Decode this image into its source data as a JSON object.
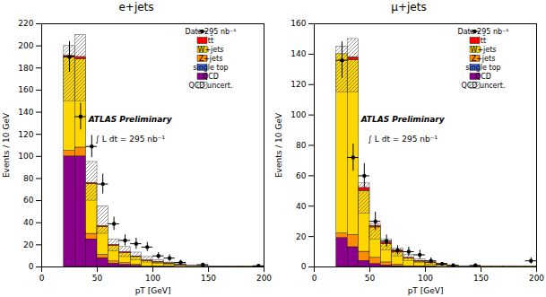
{
  "chart_data": [
    {
      "type": "bar",
      "stacked": true,
      "title": "e+jets",
      "x_label": "pT [GeV]",
      "y_label": "Events / 10 GeV",
      "bins": [
        20,
        30,
        40,
        50,
        60,
        70,
        80,
        90,
        100,
        110,
        120,
        130,
        140,
        150,
        160,
        170,
        180,
        190,
        200
      ],
      "series": [
        {
          "name": "QCD",
          "color": "#8b008b",
          "values": [
            100,
            100,
            25,
            8,
            3,
            2,
            1,
            0,
            0,
            0,
            0,
            0,
            0,
            0,
            0,
            0,
            0,
            0
          ]
        },
        {
          "name": "single top",
          "color": "#4169e1",
          "values": [
            0,
            0,
            0,
            0,
            0,
            0,
            0,
            0,
            0,
            0,
            0,
            0,
            0,
            0,
            0,
            0,
            0,
            0
          ]
        },
        {
          "name": "Z+jets",
          "color": "#ff8c00",
          "values": [
            5,
            8,
            5,
            3,
            2,
            1.5,
            1,
            0.5,
            0.5,
            0.5,
            0,
            0,
            0,
            0,
            0,
            0,
            0,
            0
          ]
        },
        {
          "name": "W+jets",
          "color": "#ffd700",
          "values": [
            85,
            80,
            45,
            25,
            14,
            9,
            7,
            5,
            3.5,
            2.5,
            1.5,
            1,
            1,
            0.5,
            0.5,
            0.5,
            0.5,
            0.5
          ]
        },
        {
          "name": "tt̄",
          "color": "#ff0000",
          "values": [
            1,
            2,
            1,
            1,
            1,
            1,
            0.5,
            0.5,
            0.5,
            0.5,
            0.5,
            0,
            0,
            0,
            0,
            0,
            0,
            0
          ]
        }
      ],
      "band": {
        "name": "QCD uncert.",
        "color": "#555555",
        "low": [
          150,
          150,
          60,
          30,
          14,
          9,
          6,
          4,
          3,
          2,
          1,
          0.5,
          0.5,
          0,
          0,
          0,
          0,
          0
        ],
        "high": [
          200,
          210,
          95,
          55,
          25,
          18,
          13,
          9,
          6,
          4,
          2.5,
          1.5,
          1,
          0.5,
          0.5,
          0,
          0,
          0
        ]
      },
      "data_points": {
        "name": "Data 295 nb⁻¹",
        "color": "#000000",
        "marker": "o",
        "x": [
          25,
          35,
          45,
          55,
          65,
          75,
          85,
          95,
          105,
          115,
          125,
          145,
          195
        ],
        "y": [
          190,
          136,
          109,
          75,
          39,
          24,
          21,
          18,
          10,
          8,
          4,
          2,
          1
        ],
        "yerr": [
          14,
          12,
          10,
          9,
          6,
          5,
          5,
          4,
          3,
          3,
          2,
          1,
          1
        ],
        "xerr": [
          5,
          5,
          5,
          5,
          5,
          5,
          5,
          5,
          5,
          5,
          5,
          5,
          5
        ]
      },
      "annotations": [
        "ATLAS Preliminary",
        "∫ L dt = 295 nb⁻¹"
      ],
      "xlim": [
        0,
        200
      ],
      "xticks": [
        0,
        50,
        100,
        150,
        200
      ],
      "ylim": [
        0,
        220
      ],
      "yticks": [
        0,
        20,
        40,
        60,
        80,
        100,
        120,
        140,
        160,
        180,
        200,
        220
      ],
      "legend": "upper right",
      "grid": false
    },
    {
      "type": "bar",
      "stacked": true,
      "title": "μ+jets",
      "x_label": "pT [GeV]",
      "y_label": "Events / 10 GeV",
      "bins": [
        20,
        30,
        40,
        50,
        60,
        70,
        80,
        90,
        100,
        110,
        120,
        130,
        140,
        150,
        160,
        170,
        180,
        190,
        200
      ],
      "series": [
        {
          "name": "QCD",
          "color": "#8b008b",
          "values": [
            19,
            13,
            4,
            2,
            1,
            0.5,
            0,
            0,
            0,
            0,
            0,
            0,
            0,
            0,
            0,
            0,
            0,
            0
          ]
        },
        {
          "name": "single top",
          "color": "#4169e1",
          "values": [
            0,
            0,
            0,
            0,
            0,
            0,
            0,
            0,
            0,
            0,
            0,
            0,
            0,
            0,
            0,
            0,
            0,
            0
          ]
        },
        {
          "name": "Z+jets",
          "color": "#ff8c00",
          "values": [
            3,
            8,
            6,
            4,
            2,
            1,
            0.5,
            0.5,
            0.5,
            0,
            0,
            0,
            0,
            0,
            0,
            0,
            0,
            0
          ]
        },
        {
          "name": "W+jets",
          "color": "#ffd700",
          "values": [
            118,
            115,
            40,
            20,
            12,
            8,
            5,
            3,
            2,
            1.5,
            1,
            0.5,
            0.5,
            0.5,
            0.5,
            0.5,
            0.5,
            0.5
          ]
        },
        {
          "name": "tt̄",
          "color": "#ff0000",
          "values": [
            0,
            2,
            2,
            1,
            1,
            1,
            0.5,
            0.5,
            0.5,
            0.5,
            0,
            0,
            0,
            0,
            0,
            0,
            0,
            0
          ]
        }
      ],
      "band": {
        "name": "QCD uncert.",
        "color": "#555555",
        "low": [
          115,
          115,
          35,
          18,
          11,
          7,
          4,
          2.5,
          1.5,
          1,
          0.5,
          0,
          0,
          0,
          0,
          0,
          0,
          0
        ],
        "high": [
          145,
          150,
          55,
          28,
          18,
          12,
          8,
          5,
          3,
          2,
          1,
          0.5,
          0,
          0,
          0,
          0,
          0,
          0
        ]
      },
      "data_points": {
        "name": "Data 295 nb⁻¹",
        "color": "#000000",
        "marker": "o",
        "x": [
          25,
          35,
          45,
          55,
          65,
          75,
          85,
          95,
          105,
          115,
          125,
          145,
          195
        ],
        "y": [
          136,
          72,
          60,
          30,
          17,
          11,
          10,
          8,
          4,
          2,
          1,
          1,
          4
        ],
        "yerr": [
          12,
          9,
          8,
          6,
          4,
          3,
          3,
          3,
          2,
          1,
          1,
          1,
          2
        ],
        "xerr": [
          5,
          5,
          5,
          5,
          5,
          5,
          5,
          5,
          5,
          5,
          5,
          5,
          5
        ]
      },
      "annotations": [
        "ATLAS Preliminary",
        "∫ L dt = 295 nb⁻¹"
      ],
      "xlim": [
        0,
        200
      ],
      "xticks": [
        0,
        50,
        100,
        150,
        200
      ],
      "ylim": [
        0,
        160
      ],
      "yticks": [
        0,
        20,
        40,
        60,
        80,
        100,
        120,
        140,
        160
      ],
      "legend": "upper right",
      "grid": false
    }
  ]
}
